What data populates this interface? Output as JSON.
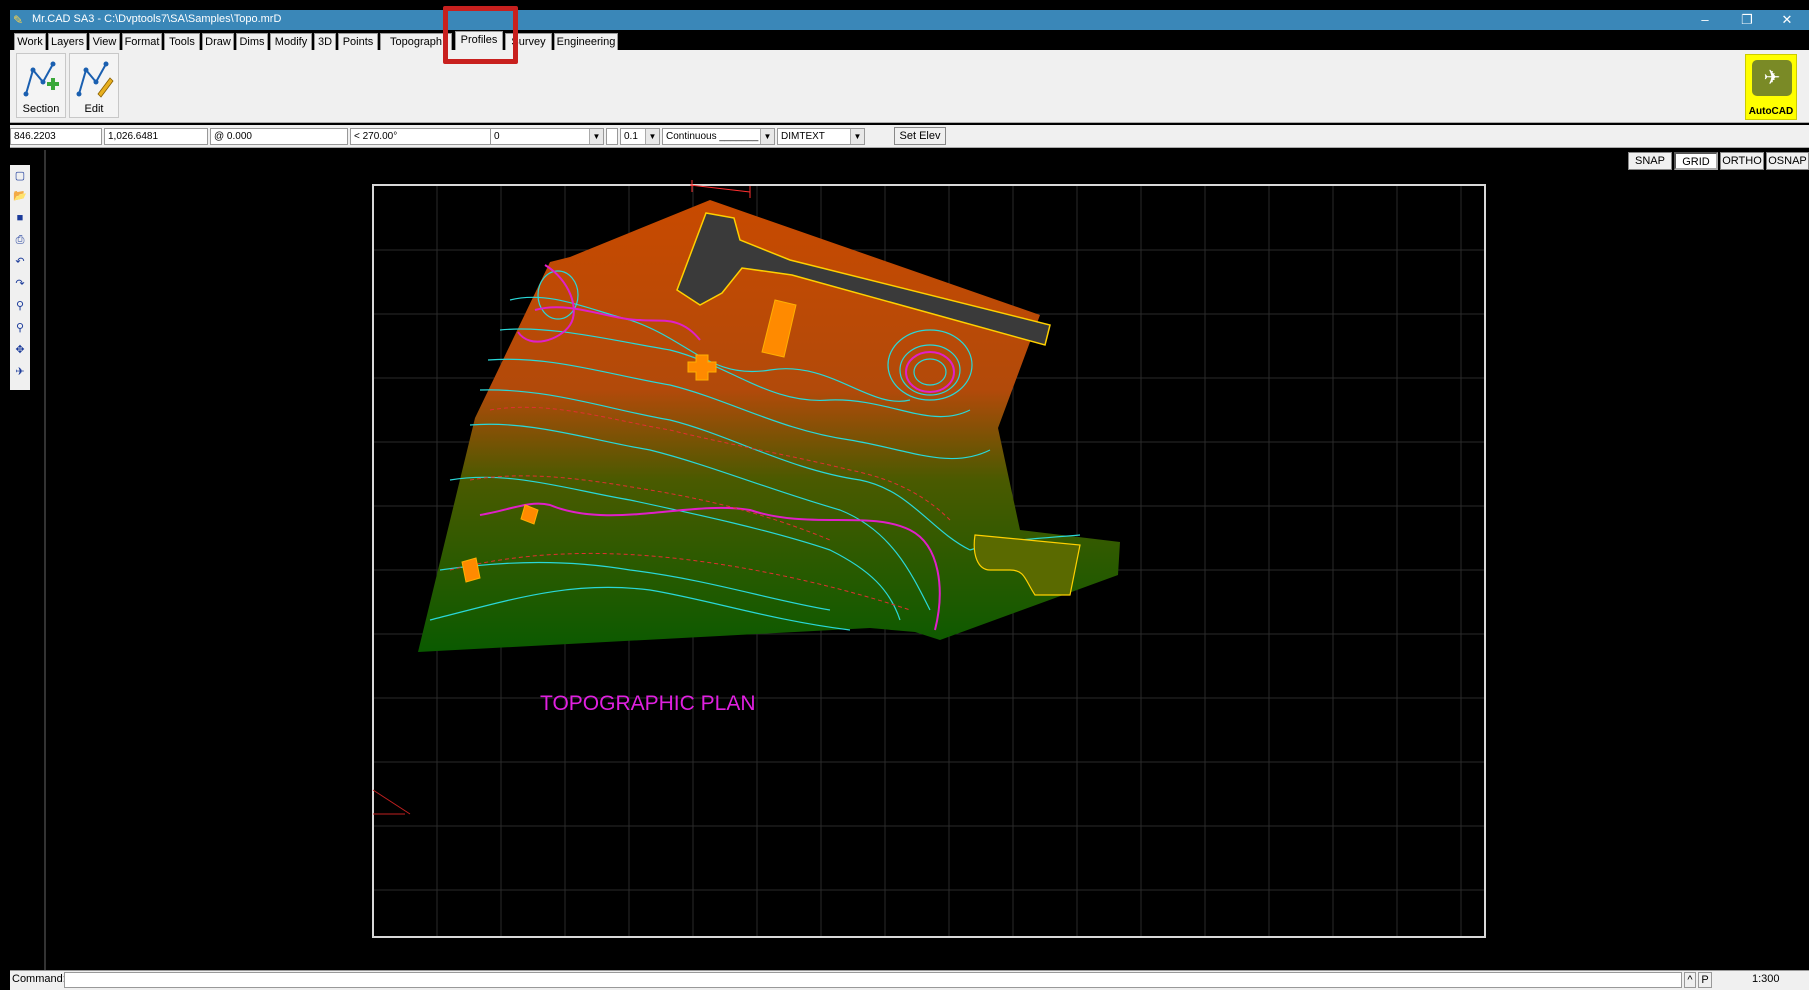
{
  "window": {
    "title": "Mr.CAD SA3 - C:\\Dvptools7\\SA\\Samples\\Topo.mrD",
    "minimize": "–",
    "restore": "❐",
    "close": "✕"
  },
  "tabs": [
    {
      "label": "Work"
    },
    {
      "label": "Layers"
    },
    {
      "label": "View"
    },
    {
      "label": "Format"
    },
    {
      "label": "Tools"
    },
    {
      "label": "Draw"
    },
    {
      "label": "Dims"
    },
    {
      "label": "Modify"
    },
    {
      "label": "3D"
    },
    {
      "label": "Points"
    },
    {
      "label": "Topograph"
    },
    {
      "label": "Profiles",
      "active": true
    },
    {
      "label": "Survey"
    },
    {
      "label": "Engineering"
    }
  ],
  "ribbon": {
    "section_label": "Section",
    "edit_label": "Edit",
    "autocad_label": "AutoCAD"
  },
  "propbar": {
    "x_coord": "846.2203",
    "y_coord": "1,026.6481",
    "rel_coord": "@ 0.000",
    "angle": "< 270.00°",
    "layer": "0",
    "lineweight": "0.1",
    "linetype": "Continuous _______",
    "textstyle": "DIMTEXT",
    "set_elev": "Set Elev"
  },
  "toggles": {
    "snap": "SNAP",
    "grid": "GRID",
    "ortho": "ORTHO",
    "osnap": "OSNAP"
  },
  "drawing": {
    "plan_title": "TOPOGRAPHIC PLAN",
    "title_color": "#e020e0",
    "contour_cyan": "#2ad8d8",
    "contour_magenta": "#e020c8",
    "road_color": "#3a3a3a",
    "building_color": "#ff8a00"
  },
  "statusbar": {
    "command_label": "Command:",
    "p_label": "P",
    "up_arrow": "^",
    "scale": "1:300"
  }
}
